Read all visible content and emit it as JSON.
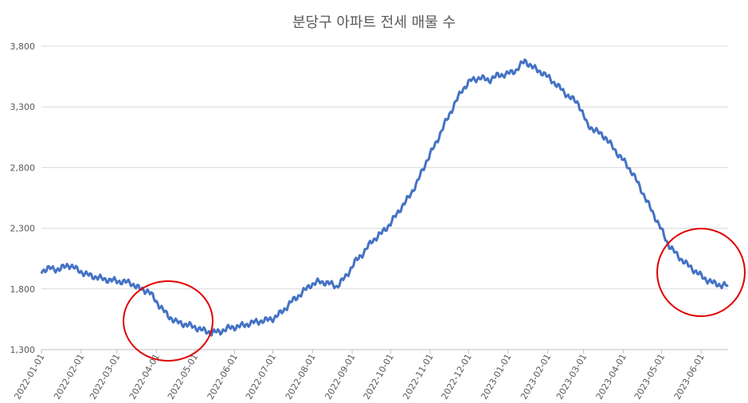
{
  "chart_data": {
    "type": "line",
    "title": "분당구 아파트 전세 매물 수",
    "xlabel": "",
    "ylabel": "",
    "ylim": [
      1300,
      3800
    ],
    "yticks": [
      1300,
      1800,
      2300,
      2800,
      3300,
      3800
    ],
    "ytick_labels": [
      "1,300",
      "1,800",
      "2,300",
      "2,800",
      "3,300",
      "3,800"
    ],
    "xtick_labels": [
      "2022-01-01",
      "2022-02-01",
      "2022-03-01",
      "2022-04-01",
      "2022-05-01",
      "2022-06-01",
      "2022-07-01",
      "2022-08-01",
      "2022-09-01",
      "2022-10-01",
      "2022-11-01",
      "2022-12-01",
      "2023-01-01",
      "2023-02-01",
      "2023-03-01",
      "2023-04-01",
      "2023-05-01",
      "2023-06-01"
    ],
    "xlim": [
      "2022-01-01",
      "2023-06-22"
    ],
    "grid": true,
    "line_color": "#4472C4",
    "annotation_color": "#E00000",
    "series": [
      {
        "x": [
          "2022-01-01",
          "2022-01-08",
          "2022-01-15",
          "2022-01-22",
          "2022-01-29",
          "2022-02-05",
          "2022-02-12",
          "2022-02-19",
          "2022-02-26",
          "2022-03-05",
          "2022-03-12",
          "2022-03-19",
          "2022-03-26",
          "2022-04-02",
          "2022-04-09",
          "2022-04-16",
          "2022-04-23",
          "2022-04-30",
          "2022-05-07",
          "2022-05-14",
          "2022-05-21",
          "2022-05-28",
          "2022-06-04",
          "2022-06-11",
          "2022-06-18",
          "2022-06-25",
          "2022-07-02",
          "2022-07-09",
          "2022-07-16",
          "2022-07-23",
          "2022-07-30",
          "2022-08-06",
          "2022-08-13",
          "2022-08-20",
          "2022-08-27",
          "2022-09-03",
          "2022-09-10",
          "2022-09-17",
          "2022-09-24",
          "2022-10-01",
          "2022-10-08",
          "2022-10-15",
          "2022-10-22",
          "2022-10-29",
          "2022-11-05",
          "2022-11-12",
          "2022-11-19",
          "2022-11-26",
          "2022-12-03",
          "2022-12-10",
          "2022-12-17",
          "2022-12-24",
          "2022-12-31",
          "2023-01-07",
          "2023-01-14",
          "2023-01-21",
          "2023-01-28",
          "2023-02-04",
          "2023-02-11",
          "2023-02-18",
          "2023-02-25",
          "2023-03-04",
          "2023-03-11",
          "2023-03-18",
          "2023-03-25",
          "2023-04-01",
          "2023-04-08",
          "2023-04-15",
          "2023-04-22",
          "2023-04-29",
          "2023-05-06",
          "2023-05-13",
          "2023-05-20",
          "2023-05-27",
          "2023-06-03",
          "2023-06-10",
          "2023-06-17",
          "2023-06-22"
        ],
        "values": [
          1950,
          1970,
          1960,
          2000,
          1960,
          1920,
          1900,
          1880,
          1870,
          1860,
          1850,
          1800,
          1780,
          1680,
          1590,
          1530,
          1510,
          1490,
          1460,
          1440,
          1450,
          1480,
          1490,
          1510,
          1530,
          1540,
          1560,
          1620,
          1700,
          1760,
          1830,
          1860,
          1850,
          1820,
          1900,
          2020,
          2100,
          2200,
          2260,
          2340,
          2450,
          2550,
          2680,
          2850,
          2990,
          3150,
          3300,
          3440,
          3520,
          3540,
          3520,
          3560,
          3570,
          3600,
          3680,
          3620,
          3580,
          3520,
          3450,
          3380,
          3330,
          3150,
          3100,
          3050,
          2950,
          2860,
          2760,
          2620,
          2470,
          2330,
          2170,
          2080,
          2010,
          1950,
          1890,
          1850,
          1830,
          1830
        ]
      }
    ]
  }
}
